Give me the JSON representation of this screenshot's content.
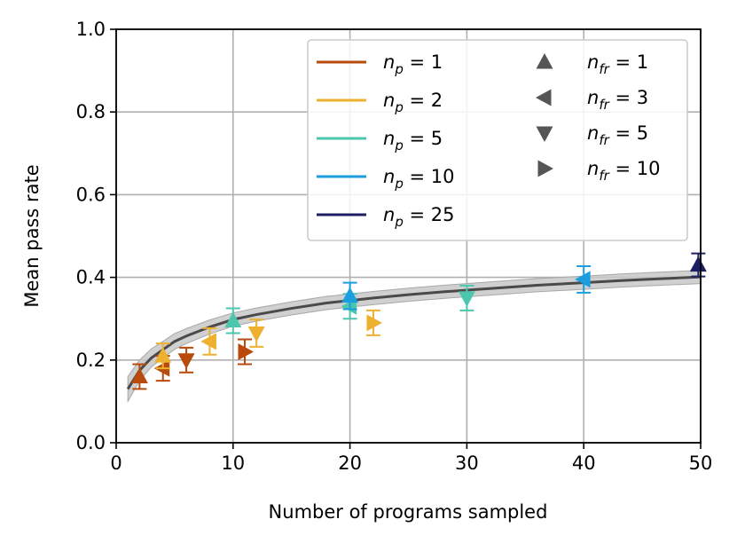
{
  "chart_data": {
    "type": "scatter",
    "xlabel": "Number of programs sampled",
    "ylabel": "Mean pass rate",
    "xlim": [
      0,
      50
    ],
    "ylim": [
      0.0,
      1.0
    ],
    "xticks": [
      "0",
      "10",
      "20",
      "30",
      "40",
      "50"
    ],
    "yticks": [
      "0.0",
      "0.2",
      "0.4",
      "0.6",
      "0.8",
      "1.0"
    ],
    "grid": true,
    "legend_position": "top-right",
    "colors": {
      "np_1": "#b84a0c",
      "np_2": "#eeb02f",
      "np_5": "#4cc7ad",
      "np_10": "#1a9ee0",
      "np_25": "#1c1f63",
      "curve": "#4a4a4a",
      "band": "#c8c8c8",
      "marker_legend": "#555555"
    },
    "legend": {
      "colors": [
        {
          "key": "np_1",
          "base": "n",
          "sub": "p",
          "eq": " = 1"
        },
        {
          "key": "np_2",
          "base": "n",
          "sub": "p",
          "eq": " = 2"
        },
        {
          "key": "np_5",
          "base": "n",
          "sub": "p",
          "eq": " = 5"
        },
        {
          "key": "np_10",
          "base": "n",
          "sub": "p",
          "eq": " = 10"
        },
        {
          "key": "np_25",
          "base": "n",
          "sub": "p",
          "eq": " = 25"
        }
      ],
      "markers": [
        {
          "shape": "up",
          "base": "n",
          "sub": "fr",
          "eq": " = 1"
        },
        {
          "shape": "left",
          "base": "n",
          "sub": "fr",
          "eq": " = 3"
        },
        {
          "shape": "down",
          "base": "n",
          "sub": "fr",
          "eq": " = 5"
        },
        {
          "shape": "right",
          "base": "n",
          "sub": "fr",
          "eq": " = 10"
        }
      ]
    },
    "curve": {
      "x": [
        1,
        2,
        3,
        4,
        5,
        6,
        8,
        10,
        12,
        15,
        18,
        20,
        22,
        25,
        28,
        30,
        33,
        36,
        40,
        43,
        46,
        50
      ],
      "mean": [
        0.13,
        0.175,
        0.205,
        0.225,
        0.245,
        0.258,
        0.28,
        0.298,
        0.31,
        0.325,
        0.338,
        0.344,
        0.35,
        0.358,
        0.365,
        0.369,
        0.375,
        0.381,
        0.387,
        0.392,
        0.396,
        0.401
      ],
      "band_half_width": [
        0.03,
        0.025,
        0.022,
        0.02,
        0.019,
        0.018,
        0.017,
        0.016,
        0.016,
        0.016,
        0.016,
        0.016,
        0.016,
        0.016,
        0.016,
        0.016,
        0.016,
        0.016,
        0.016,
        0.016,
        0.016,
        0.016
      ]
    },
    "points": [
      {
        "x": 2,
        "y": 0.16,
        "err": 0.03,
        "color": "np_1",
        "shape": "up"
      },
      {
        "x": 4,
        "y": 0.18,
        "err": 0.03,
        "color": "np_1",
        "shape": "left"
      },
      {
        "x": 6,
        "y": 0.2,
        "err": 0.03,
        "color": "np_1",
        "shape": "down"
      },
      {
        "x": 11,
        "y": 0.22,
        "err": 0.03,
        "color": "np_1",
        "shape": "right"
      },
      {
        "x": 4,
        "y": 0.21,
        "err": 0.03,
        "color": "np_2",
        "shape": "up"
      },
      {
        "x": 8,
        "y": 0.245,
        "err": 0.032,
        "color": "np_2",
        "shape": "left"
      },
      {
        "x": 12,
        "y": 0.265,
        "err": 0.033,
        "color": "np_2",
        "shape": "down"
      },
      {
        "x": 22,
        "y": 0.29,
        "err": 0.03,
        "color": "np_2",
        "shape": "right"
      },
      {
        "x": 10,
        "y": 0.295,
        "err": 0.03,
        "color": "np_5",
        "shape": "up"
      },
      {
        "x": 20,
        "y": 0.33,
        "err": 0.03,
        "color": "np_5",
        "shape": "left"
      },
      {
        "x": 30,
        "y": 0.35,
        "err": 0.03,
        "color": "np_5",
        "shape": "down"
      },
      {
        "x": 20,
        "y": 0.355,
        "err": 0.032,
        "color": "np_10",
        "shape": "up"
      },
      {
        "x": 40,
        "y": 0.395,
        "err": 0.032,
        "color": "np_10",
        "shape": "left"
      },
      {
        "x": 49.8,
        "y": 0.43,
        "err": 0.028,
        "color": "np_25",
        "shape": "up"
      }
    ]
  }
}
